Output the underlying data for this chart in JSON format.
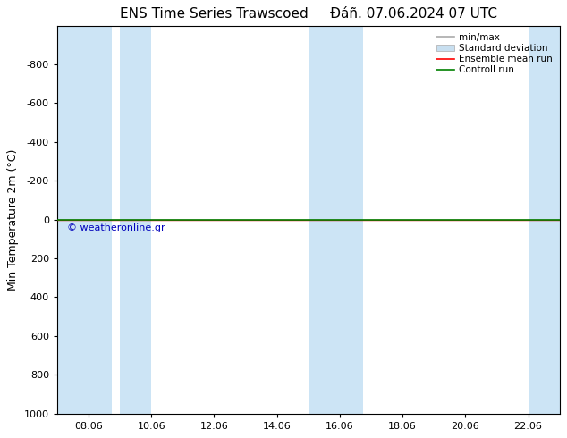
{
  "title": "ENS Time Series Trawscoed",
  "title2": "Đáñ. 07.06.2024 07 UTC",
  "ylabel": "Min Temperature 2m (°C)",
  "watermark": "© weatheronline.gr",
  "ylim_top": -1000,
  "ylim_bottom": 1000,
  "yticks": [
    -800,
    -600,
    -400,
    -200,
    0,
    200,
    400,
    600,
    800,
    1000
  ],
  "xtick_labels": [
    "08.06",
    "10.06",
    "12.06",
    "14.06",
    "16.06",
    "18.06",
    "20.06",
    "22.06"
  ],
  "xtick_positions": [
    8,
    10,
    12,
    14,
    16,
    18,
    20,
    22
  ],
  "xlim": [
    7.0,
    23.0
  ],
  "bg_color": "#ffffff",
  "plot_bg_color": "#ffffff",
  "shaded_band_color": "#cce4f5",
  "shaded_bands": [
    [
      7.0,
      8.75
    ],
    [
      9.0,
      10.0
    ],
    [
      15.0,
      16.0
    ],
    [
      16.0,
      16.75
    ],
    [
      22.0,
      23.0
    ]
  ],
  "control_run_y": 0,
  "ensemble_mean_y": 0,
  "legend_labels": [
    "min/max",
    "Standard deviation",
    "Ensemble mean run",
    "Controll run"
  ],
  "legend_colors_line": [
    "#aaaaaa",
    "#b8d0e8",
    "#ff0000",
    "#008000"
  ],
  "title_fontsize": 11,
  "tick_fontsize": 8,
  "ylabel_fontsize": 9,
  "watermark_color": "#0000bb",
  "watermark_fontsize": 8,
  "spine_color": "#000000",
  "legend_fontsize": 7.5,
  "green_line_color": "#008000",
  "red_line_color": "#dd0000"
}
